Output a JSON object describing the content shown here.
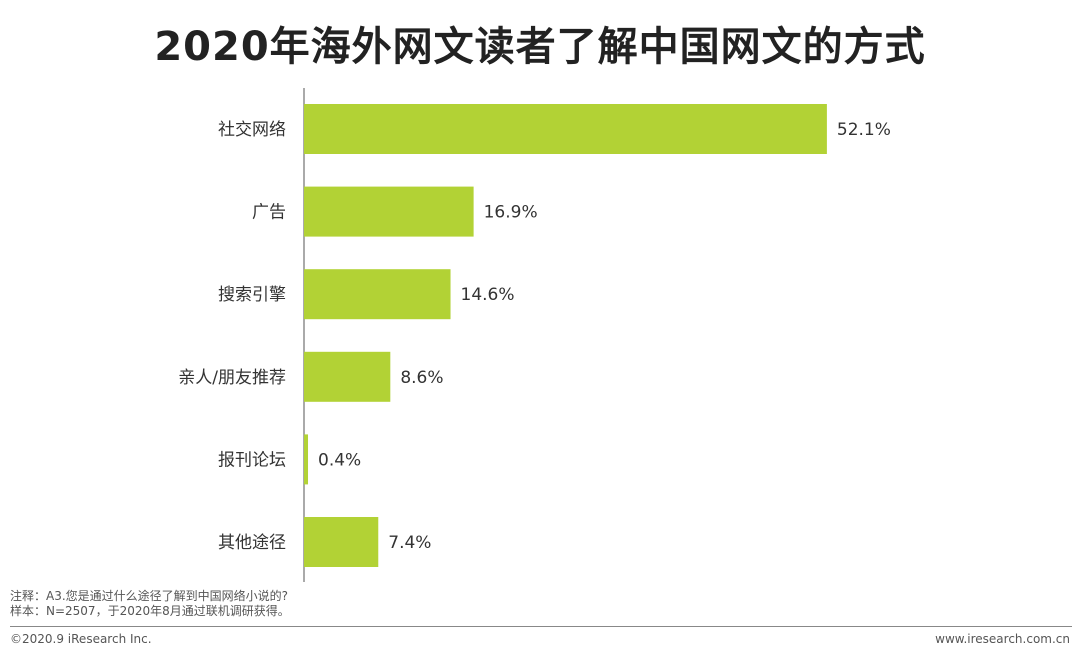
{
  "chart_data": {
    "type": "bar",
    "orientation": "horizontal",
    "title": "2020年海外网文读者了解中国网文的方式",
    "categories": [
      "社交网络",
      "广告",
      "搜索引擎",
      "亲人/朋友推荐",
      "报刊论坛",
      "其他途径"
    ],
    "values": [
      52.1,
      16.9,
      14.6,
      8.6,
      0.4,
      7.4
    ],
    "value_labels": [
      "52.1%",
      "16.9%",
      "14.6%",
      "8.6%",
      "0.4%",
      "7.4%"
    ],
    "unit": "%",
    "xlim": [
      0,
      55
    ],
    "grid": false,
    "legend": "none",
    "bar_color": "#b2d235"
  },
  "notes": {
    "note": "注释：A3.您是通过什么途径了解到中国网络小说的?",
    "sample": "样本：N=2507，于2020年8月通过联机调研获得。"
  },
  "footer": {
    "copyright": "©2020.9 iResearch Inc.",
    "website": "www.iresearch.com.cn"
  }
}
